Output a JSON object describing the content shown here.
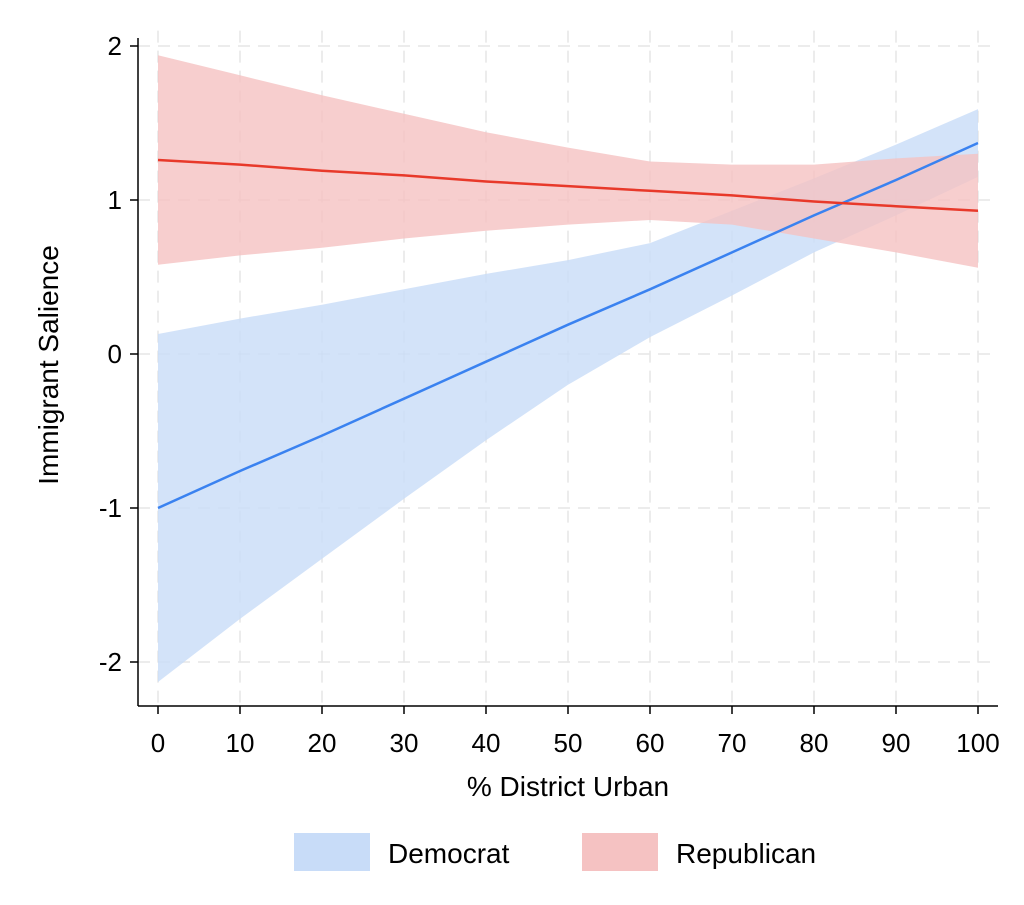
{
  "chart_data": {
    "type": "line",
    "title": "",
    "xlabel": "% District Urban",
    "ylabel": "Immigrant Salience",
    "xlim": [
      0,
      100
    ],
    "ylim": [
      -2.3,
      2.1
    ],
    "x_ticks": [
      0,
      10,
      20,
      30,
      40,
      50,
      60,
      70,
      80,
      90,
      100
    ],
    "x_tick_labels": [
      "0",
      "10",
      "20",
      "30",
      "40",
      "50",
      "60",
      "70",
      "80",
      "90",
      "100"
    ],
    "y_ticks": [
      -2,
      -1,
      0,
      1,
      2
    ],
    "y_tick_labels": [
      "-2",
      "-1",
      "0",
      "1",
      "2"
    ],
    "grid": true,
    "legend_position": "bottom",
    "series": [
      {
        "name": "Democrat",
        "color": "#3a82f0",
        "band_color": "#c8dcf8",
        "x": [
          0,
          10,
          20,
          30,
          40,
          50,
          60,
          70,
          80,
          90,
          100
        ],
        "y": [
          -1.0,
          -0.76,
          -0.53,
          -0.29,
          -0.05,
          0.19,
          0.42,
          0.66,
          0.9,
          1.13,
          1.37
        ],
        "lower": [
          -2.13,
          -1.72,
          -1.33,
          -0.94,
          -0.56,
          -0.2,
          0.11,
          0.38,
          0.66,
          0.9,
          1.15
        ],
        "upper": [
          0.13,
          0.23,
          0.32,
          0.42,
          0.52,
          0.61,
          0.72,
          0.93,
          1.14,
          1.36,
          1.59
        ]
      },
      {
        "name": "Republican",
        "color": "#e8392a",
        "band_color": "#f5c2c2",
        "x": [
          0,
          10,
          20,
          30,
          40,
          50,
          60,
          70,
          80,
          90,
          100
        ],
        "y": [
          1.26,
          1.23,
          1.19,
          1.16,
          1.12,
          1.09,
          1.06,
          1.03,
          0.99,
          0.96,
          0.93
        ],
        "lower": [
          0.58,
          0.64,
          0.69,
          0.75,
          0.8,
          0.84,
          0.87,
          0.84,
          0.75,
          0.66,
          0.56
        ],
        "upper": [
          1.94,
          1.81,
          1.68,
          1.56,
          1.44,
          1.34,
          1.25,
          1.23,
          1.23,
          1.27,
          1.3
        ]
      }
    ]
  }
}
